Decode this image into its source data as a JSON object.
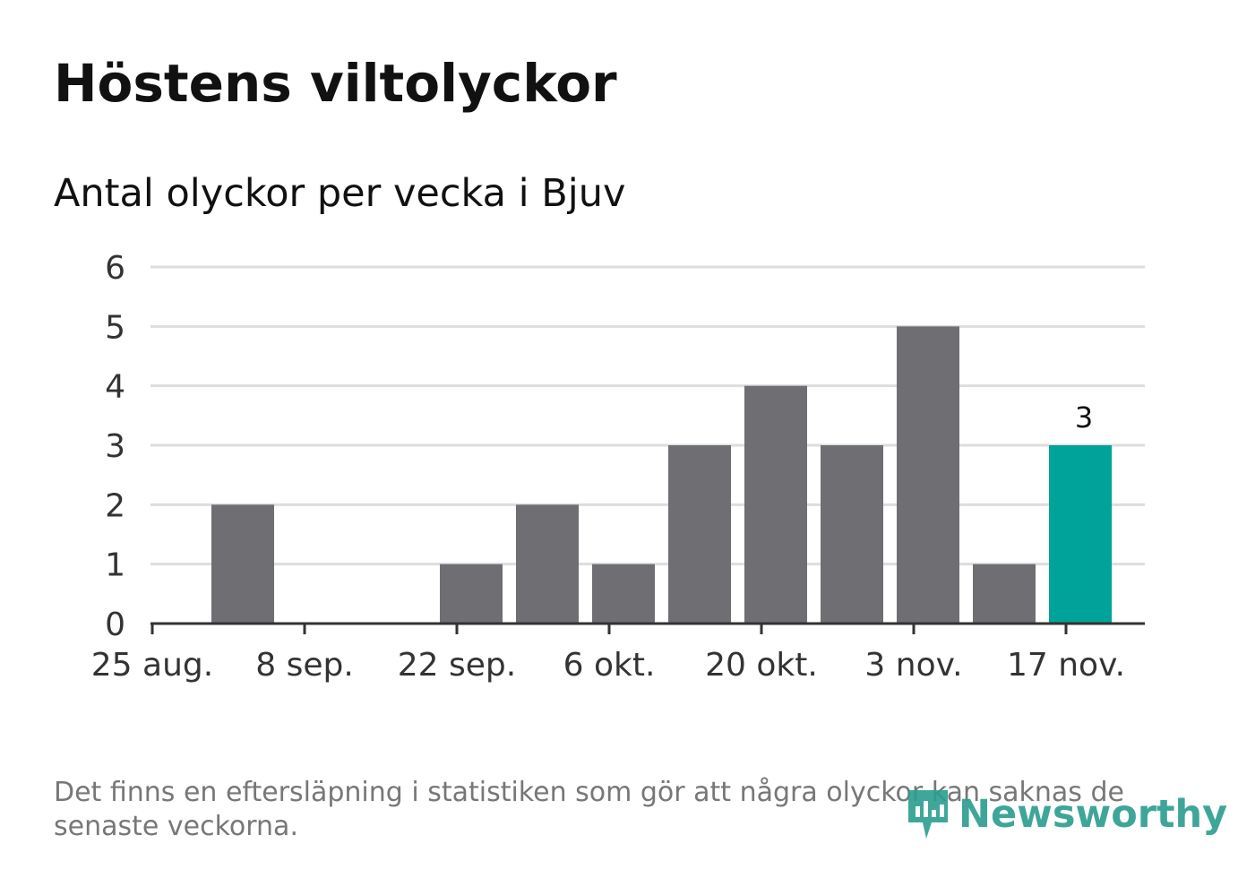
{
  "header": {
    "title": "Höstens viltolyckor",
    "subtitle": "Antal olyckor per vecka i Bjuv"
  },
  "footnote": "Det finns en eftersläpning i statistiken som gör att några olyckor kan saknas de senaste veckorna.",
  "logo": {
    "text": "Newsworthy",
    "icon": "newsworthy-chart-icon"
  },
  "colors": {
    "bar": "#6f6e73",
    "highlight": "#00a39a",
    "grid": "#dddddd",
    "axis": "#333333",
    "logo": "#2a9d8f"
  },
  "chart_data": {
    "type": "bar",
    "x": [
      "2025-08-25",
      "2025-09-01",
      "2025-09-08",
      "2025-09-15",
      "2025-09-22",
      "2025-09-29",
      "2025-10-06",
      "2025-10-13",
      "2025-10-20",
      "2025-10-27",
      "2025-11-03",
      "2025-11-10",
      "2025-11-17"
    ],
    "values": [
      0,
      2,
      0,
      0,
      1,
      2,
      1,
      3,
      4,
      3,
      5,
      1,
      3
    ],
    "highlight_index": 12,
    "data_labels": [
      {
        "index": 12,
        "text": "3"
      }
    ],
    "ylim": [
      0,
      6
    ],
    "yticks": [
      "0",
      "1",
      "2",
      "3",
      "4",
      "5",
      "6"
    ],
    "xticks": [
      {
        "index": 0,
        "label": "25 aug."
      },
      {
        "index": 2,
        "label": "8 sep."
      },
      {
        "index": 4,
        "label": "22 sep."
      },
      {
        "index": 6,
        "label": "6 okt."
      },
      {
        "index": 8,
        "label": "20 okt."
      },
      {
        "index": 10,
        "label": "3 nov."
      },
      {
        "index": 12,
        "label": "17 nov."
      }
    ],
    "grid": true,
    "legend": "none"
  }
}
